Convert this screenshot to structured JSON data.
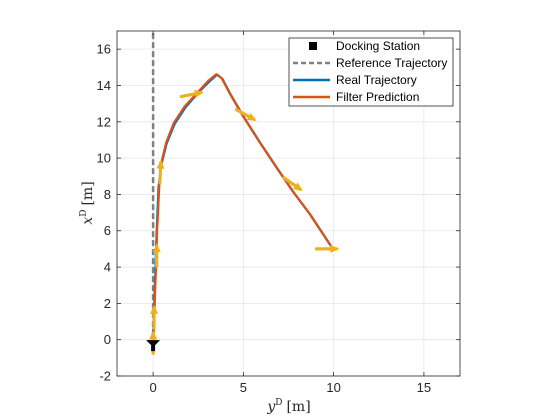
{
  "chart_data": {
    "type": "line",
    "title": "",
    "xlabel": {
      "main": "y",
      "superscript": "D",
      "unit": "[m]"
    },
    "ylabel": {
      "main": "x",
      "superscript": "D",
      "unit": "[m]"
    },
    "xlim": [
      -2,
      17
    ],
    "ylim": [
      -2,
      17
    ],
    "xticks": [
      0,
      5,
      10,
      15
    ],
    "yticks": [
      -2,
      0,
      2,
      4,
      6,
      8,
      10,
      12,
      14,
      16
    ],
    "grid": true,
    "legend_position": "top-right",
    "series": [
      {
        "name": "Docking Station",
        "kind": "marker",
        "color": "#000000",
        "points": [
          [
            0,
            -0.3
          ]
        ]
      },
      {
        "name": "Reference Trajectory",
        "kind": "dashed-line",
        "color": "#808080",
        "points": [
          [
            0,
            -0.3
          ],
          [
            0,
            17
          ]
        ]
      },
      {
        "name": "Real Trajectory",
        "kind": "line",
        "color": "#0072BD",
        "points": [
          [
            0,
            0.2
          ],
          [
            0.05,
            1.5
          ],
          [
            0.1,
            3.0
          ],
          [
            0.15,
            4.5
          ],
          [
            0.2,
            6.0
          ],
          [
            0.25,
            7.2
          ],
          [
            0.3,
            8.4
          ],
          [
            0.45,
            9.6
          ],
          [
            0.75,
            10.8
          ],
          [
            1.2,
            11.9
          ],
          [
            1.8,
            12.8
          ],
          [
            2.5,
            13.6
          ],
          [
            3.1,
            14.2
          ],
          [
            3.55,
            14.6
          ],
          [
            3.85,
            14.35
          ],
          [
            4.3,
            13.5
          ],
          [
            5.0,
            12.3
          ],
          [
            5.9,
            10.9
          ],
          [
            6.9,
            9.4
          ],
          [
            7.8,
            8.1
          ],
          [
            8.7,
            6.9
          ],
          [
            9.5,
            5.7
          ],
          [
            9.9,
            5.1
          ]
        ]
      },
      {
        "name": "Filter Prediction",
        "kind": "line",
        "color": "#D95319",
        "points": [
          [
            0.02,
            0.25
          ],
          [
            0.08,
            1.5
          ],
          [
            0.12,
            3.0
          ],
          [
            0.18,
            4.5
          ],
          [
            0.22,
            6.0
          ],
          [
            0.28,
            7.2
          ],
          [
            0.34,
            8.4
          ],
          [
            0.42,
            9.6
          ],
          [
            0.72,
            10.85
          ],
          [
            1.15,
            11.95
          ],
          [
            1.75,
            12.85
          ],
          [
            2.45,
            13.6
          ],
          [
            3.05,
            14.25
          ],
          [
            3.5,
            14.62
          ],
          [
            3.8,
            14.4
          ],
          [
            4.25,
            13.55
          ],
          [
            4.95,
            12.35
          ],
          [
            5.85,
            10.95
          ],
          [
            6.85,
            9.45
          ],
          [
            7.75,
            8.15
          ],
          [
            8.65,
            6.95
          ],
          [
            9.45,
            5.75
          ],
          [
            9.85,
            5.15
          ]
        ]
      },
      {
        "name": "Pose Arrows",
        "kind": "arrows",
        "color": "#EDB120",
        "points": [
          [
            0,
            -0.2
          ],
          [
            0.05,
            1.2
          ],
          [
            0.2,
            4.6
          ],
          [
            0.4,
            9.2
          ],
          [
            2.1,
            13.5
          ],
          [
            5.1,
            12.4
          ],
          [
            7.7,
            8.6
          ],
          [
            9.6,
            5.0
          ]
        ],
        "headings": [
          [
            0,
            1
          ],
          [
            0,
            1
          ],
          [
            0,
            1
          ],
          [
            0.05,
            1
          ],
          [
            1,
            0.2
          ],
          [
            1,
            -0.55
          ],
          [
            1,
            -0.7
          ],
          [
            1,
            0
          ]
        ]
      }
    ],
    "legend": [
      "Docking Station",
      "Reference Trajectory",
      "Real Trajectory",
      "Filter Prediction"
    ]
  }
}
